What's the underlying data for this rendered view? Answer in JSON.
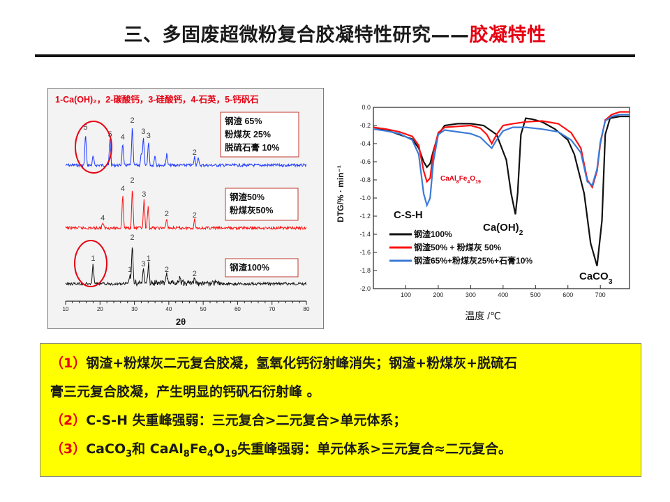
{
  "header": {
    "title_main": "三、多固废超微粉复合胶凝特性研究——",
    "title_highlight": "胶凝特性"
  },
  "colors": {
    "accent_red": "#e60012",
    "blue": "#1f3bff",
    "red": "#ff1010",
    "black": "#111111",
    "yellow": "#ffff00"
  },
  "chart_data": [
    {
      "type": "line",
      "subject": "XRD patterns",
      "legend_top": "1-Ca(OH)₂，2-碳酸钙，3-硅酸钙，4-石英，5-钙矾石",
      "xlabel": "2θ",
      "xlim": [
        10,
        80
      ],
      "xticks": [
        10,
        20,
        30,
        40,
        50,
        60,
        70,
        80
      ],
      "series": [
        {
          "name": "钢渣 65%\n粉煤灰 25%\n脱硫石膏 10%",
          "label_lines": [
            "钢渣 65%",
            "粉煤灰 25%",
            "脱硫石膏 10%"
          ],
          "color": "#1f3bff",
          "peaks": [
            {
              "x": 15.8,
              "h": 48,
              "label": "5"
            },
            {
              "x": 18.0,
              "h": 14,
              "label": ""
            },
            {
              "x": 22.9,
              "h": 38,
              "label": "5"
            },
            {
              "x": 26.6,
              "h": 34,
              "label": "4"
            },
            {
              "x": 29.4,
              "h": 58,
              "label": "2"
            },
            {
              "x": 32.0,
              "h": 18,
              "label": ""
            },
            {
              "x": 32.6,
              "h": 42,
              "label": "3"
            },
            {
              "x": 34.1,
              "h": 36,
              "label": "3"
            },
            {
              "x": 36.0,
              "h": 16,
              "label": ""
            },
            {
              "x": 39.4,
              "h": 18,
              "label": ""
            },
            {
              "x": 47.5,
              "h": 12,
              "label": "2"
            },
            {
              "x": 48.5,
              "h": 12,
              "label": ""
            }
          ]
        },
        {
          "name": "钢渣50%\n粉煤灰50%",
          "label_lines": [
            "钢渣50%",
            "粉煤灰50%"
          ],
          "color": "#ff1010",
          "peaks": [
            {
              "x": 20.8,
              "h": 8,
              "label": "4"
            },
            {
              "x": 26.6,
              "h": 50,
              "label": "4"
            },
            {
              "x": 29.4,
              "h": 62,
              "label": "2"
            },
            {
              "x": 32.8,
              "h": 42,
              "label": "3"
            },
            {
              "x": 34.0,
              "h": 30,
              "label": ""
            },
            {
              "x": 39.4,
              "h": 14,
              "label": "2"
            },
            {
              "x": 47.5,
              "h": 12,
              "label": "2"
            }
          ]
        },
        {
          "name": "钢渣100%",
          "label_lines": [
            "钢渣100%"
          ],
          "color": "#111111",
          "peaks": [
            {
              "x": 18.0,
              "h": 30,
              "label": "1"
            },
            {
              "x": 28.7,
              "h": 14,
              "label": "1"
            },
            {
              "x": 29.4,
              "h": 60,
              "label": "2"
            },
            {
              "x": 32.6,
              "h": 22,
              "label": "3"
            },
            {
              "x": 34.1,
              "h": 30,
              "label": "1"
            },
            {
              "x": 39.4,
              "h": 14,
              "label": "2"
            },
            {
              "x": 43.2,
              "h": 8,
              "label": ""
            },
            {
              "x": 47.5,
              "h": 8,
              "label": "2"
            }
          ]
        }
      ]
    },
    {
      "type": "line",
      "subject": "DTG curves",
      "xlabel": "温度 /℃",
      "ylabel": "DTG/% · min⁻¹",
      "xlim": [
        0,
        790
      ],
      "ylim": [
        -2.0,
        0.0
      ],
      "xticks": [
        100,
        200,
        300,
        400,
        500,
        600,
        700
      ],
      "yticks": [
        0.0,
        -0.2,
        -0.4,
        -0.6,
        -0.8,
        -1.0,
        -1.2,
        -1.4,
        -1.6,
        -1.8,
        -2.0
      ],
      "legend": [
        "钢渣100%",
        "钢渣50% + 粉煤灰 50%",
        "钢渣65%+粉煤灰25%+石膏10%"
      ],
      "annotations": {
        "csh": "C-S-H",
        "caoh2_base": "Ca(OH)",
        "caoh2_sub": "2",
        "caco3_base": "CaCO",
        "caco3_sub": "3",
        "cafe": [
          "CaAl",
          "8",
          "Fe",
          "4",
          "O",
          "19"
        ]
      },
      "series": [
        {
          "name": "钢渣100%",
          "color": "#111111",
          "x": [
            0,
            40,
            80,
            120,
            140,
            155,
            165,
            175,
            185,
            200,
            220,
            260,
            300,
            340,
            380,
            410,
            425,
            438,
            445,
            455,
            470,
            490,
            520,
            560,
            600,
            620,
            650,
            670,
            690,
            705,
            715,
            730,
            760,
            790
          ],
          "y": [
            -0.22,
            -0.25,
            -0.3,
            -0.35,
            -0.45,
            -0.6,
            -0.66,
            -0.62,
            -0.48,
            -0.3,
            -0.2,
            -0.18,
            -0.18,
            -0.2,
            -0.3,
            -0.58,
            -0.95,
            -1.18,
            -0.95,
            -0.3,
            -0.12,
            -0.13,
            -0.16,
            -0.24,
            -0.36,
            -0.52,
            -0.95,
            -1.5,
            -1.75,
            -1.25,
            -0.3,
            -0.12,
            -0.1,
            -0.1
          ]
        },
        {
          "name": "钢渣50% + 粉煤灰 50%",
          "color": "#ff1010",
          "x": [
            0,
            40,
            80,
            120,
            140,
            155,
            165,
            175,
            185,
            200,
            220,
            260,
            300,
            330,
            350,
            365,
            380,
            400,
            430,
            470,
            520,
            570,
            610,
            640,
            660,
            675,
            690,
            700,
            715,
            735,
            760,
            790
          ],
          "y": [
            -0.22,
            -0.24,
            -0.27,
            -0.32,
            -0.42,
            -0.7,
            -0.82,
            -0.78,
            -0.5,
            -0.28,
            -0.22,
            -0.21,
            -0.2,
            -0.23,
            -0.3,
            -0.4,
            -0.3,
            -0.2,
            -0.18,
            -0.16,
            -0.15,
            -0.18,
            -0.28,
            -0.45,
            -0.8,
            -0.88,
            -0.7,
            -0.4,
            -0.14,
            -0.08,
            -0.05,
            -0.05
          ]
        },
        {
          "name": "钢渣65%+粉煤灰25%+石膏10%",
          "color": "#3b7bd6",
          "x": [
            0,
            40,
            80,
            120,
            140,
            155,
            165,
            175,
            185,
            200,
            220,
            260,
            300,
            330,
            350,
            365,
            380,
            400,
            430,
            470,
            520,
            570,
            610,
            640,
            660,
            675,
            690,
            700,
            715,
            735,
            760,
            790
          ],
          "y": [
            -0.24,
            -0.26,
            -0.29,
            -0.36,
            -0.52,
            -0.95,
            -1.08,
            -1.0,
            -0.6,
            -0.3,
            -0.25,
            -0.27,
            -0.29,
            -0.33,
            -0.4,
            -0.45,
            -0.36,
            -0.26,
            -0.22,
            -0.22,
            -0.24,
            -0.27,
            -0.36,
            -0.5,
            -0.82,
            -0.86,
            -0.68,
            -0.38,
            -0.15,
            -0.1,
            -0.08,
            -0.08
          ]
        }
      ]
    }
  ],
  "conclusions": [
    {
      "num": "（1）",
      "text": "钢渣+粉煤灰二元复合胶凝，氢氧化钙衍射峰消失；钢渣+粉煤灰+脱硫石"
    },
    {
      "num": "",
      "text": "膏三元复合胶凝，产生明显的钙矾石衍射峰 。"
    },
    {
      "num": "（2）",
      "text": "C-S-H 失重峰强弱：三元复合>二元复合>单元体系；"
    },
    {
      "num": "（3）",
      "text_parts": [
        "CaCO",
        "3",
        "和 CaAl",
        "8",
        "Fe",
        "4",
        "O",
        "19",
        "失重峰强弱：单元体系>三元复合≈二元复合。"
      ]
    }
  ]
}
